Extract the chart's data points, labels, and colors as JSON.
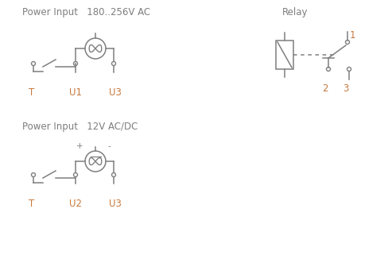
{
  "bg_color": "#ffffff",
  "line_color": "#7f7f7f",
  "label_color": "#c8783c",
  "title_color": "#7f7f7f",
  "title1": "Power Input   180..256V AC",
  "title2": "Relay",
  "title3": "Power Input   12V AC/DC",
  "label_T1": "T",
  "label_U1": "U1",
  "label_U3_top": "U3",
  "label_U2": "U2",
  "label_U3_bot": "U3",
  "label_T2": "T",
  "label_1": "1",
  "label_2": "2",
  "label_3": "3",
  "figsize": [
    4.93,
    3.31
  ],
  "dpi": 100
}
